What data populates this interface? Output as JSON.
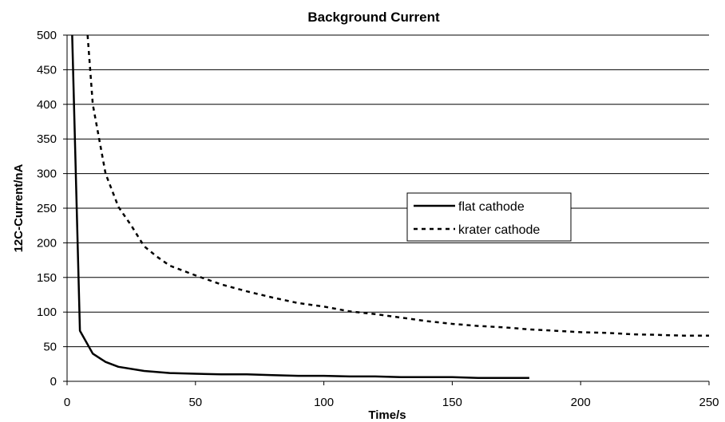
{
  "chart_data": {
    "type": "line",
    "title": "Background Current",
    "xlabel": "Time/s",
    "ylabel": "12C-Current/nA",
    "xlim": [
      0,
      250
    ],
    "ylim": [
      0,
      500
    ],
    "xticks": [
      0,
      50,
      100,
      150,
      200,
      250
    ],
    "yticks": [
      0,
      50,
      100,
      150,
      200,
      250,
      300,
      350,
      400,
      450,
      500
    ],
    "grid": "horizontal",
    "legend_position": "right",
    "series": [
      {
        "name": "flat cathode",
        "style": "solid",
        "color": "#000000",
        "x": [
          2,
          5,
          10,
          15,
          20,
          30,
          40,
          50,
          60,
          70,
          80,
          90,
          100,
          110,
          120,
          130,
          140,
          150,
          160,
          170,
          180
        ],
        "y": [
          500,
          73,
          40,
          28,
          21,
          15,
          12,
          11,
          10,
          10,
          9,
          8,
          8,
          7,
          7,
          6,
          6,
          6,
          5,
          5,
          5
        ]
      },
      {
        "name": "krater cathode",
        "style": "dotted",
        "color": "#000000",
        "x": [
          8,
          10,
          15,
          20,
          25,
          30,
          35,
          40,
          50,
          60,
          70,
          80,
          90,
          100,
          110,
          120,
          130,
          140,
          150,
          160,
          170,
          180,
          190,
          200,
          210,
          220,
          230,
          240,
          250
        ],
        "y": [
          500,
          400,
          300,
          252,
          225,
          195,
          180,
          167,
          153,
          140,
          130,
          121,
          113,
          108,
          101,
          97,
          92,
          87,
          83,
          80,
          78,
          75,
          73,
          71,
          70,
          68,
          67,
          66,
          66
        ]
      }
    ]
  }
}
